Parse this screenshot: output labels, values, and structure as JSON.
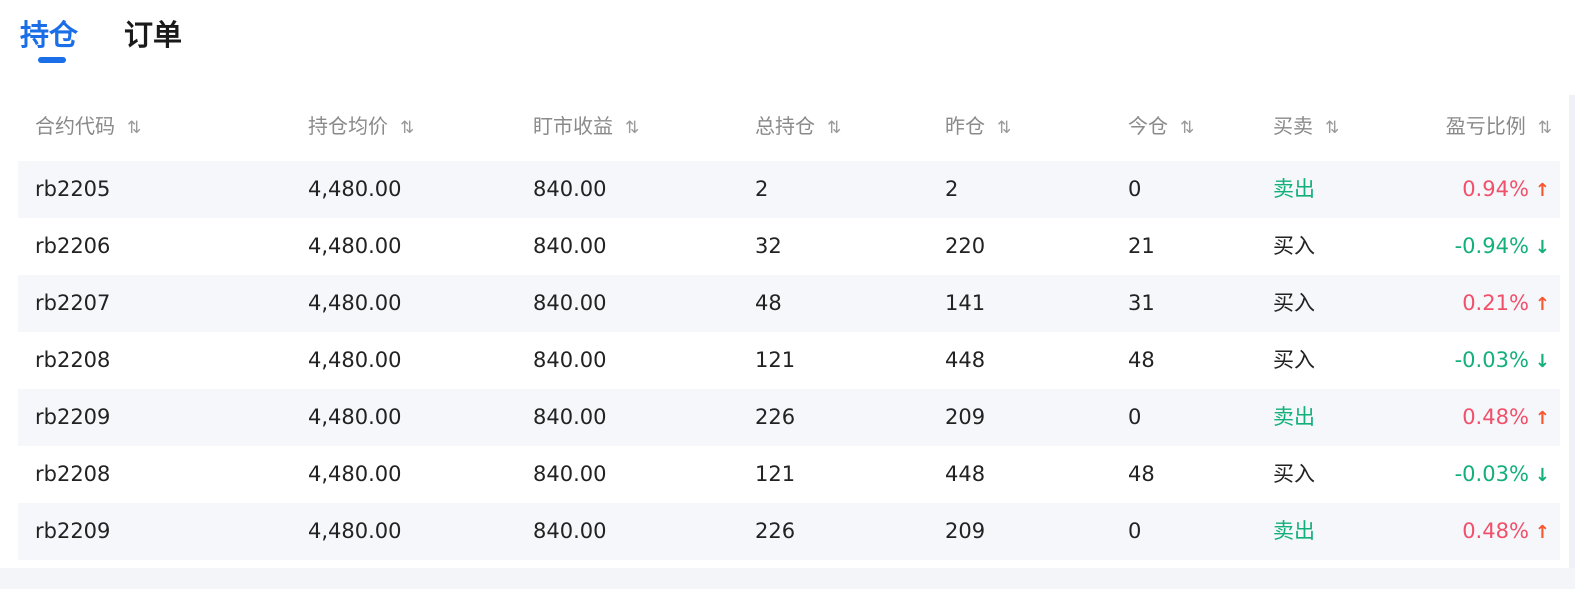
{
  "tabs": [
    {
      "label": "持仓",
      "active": true
    },
    {
      "label": "订单",
      "active": false
    }
  ],
  "colors": {
    "accent": "#1a6fe8",
    "profit": "#f0506a",
    "loss": "#13b07a",
    "sell": "#13b07a"
  },
  "columns": [
    "合约代码",
    "持仓均价",
    "盯市收益",
    "总持仓",
    "昨仓",
    "今仓",
    "买卖",
    "盈亏比例"
  ],
  "sort_icon": "⇅",
  "rows": [
    {
      "code": "rb2205",
      "avg": "4,480.00",
      "pnl": "840.00",
      "total": "2",
      "yest": "2",
      "today": "0",
      "side": "卖出",
      "ratio": "0.94%",
      "dir": "up"
    },
    {
      "code": "rb2206",
      "avg": "4,480.00",
      "pnl": "840.00",
      "total": "32",
      "yest": "220",
      "today": "21",
      "side": "买入",
      "ratio": "-0.94%",
      "dir": "down"
    },
    {
      "code": "rb2207",
      "avg": "4,480.00",
      "pnl": "840.00",
      "total": "48",
      "yest": "141",
      "today": "31",
      "side": "买入",
      "ratio": "0.21%",
      "dir": "up"
    },
    {
      "code": "rb2208",
      "avg": "4,480.00",
      "pnl": "840.00",
      "total": "121",
      "yest": "448",
      "today": "48",
      "side": "买入",
      "ratio": "-0.03%",
      "dir": "down"
    },
    {
      "code": "rb2209",
      "avg": "4,480.00",
      "pnl": "840.00",
      "total": "226",
      "yest": "209",
      "today": "0",
      "side": "卖出",
      "ratio": "0.48%",
      "dir": "up"
    },
    {
      "code": "rb2208",
      "avg": "4,480.00",
      "pnl": "840.00",
      "total": "121",
      "yest": "448",
      "today": "48",
      "side": "买入",
      "ratio": "-0.03%",
      "dir": "down"
    },
    {
      "code": "rb2209",
      "avg": "4,480.00",
      "pnl": "840.00",
      "total": "226",
      "yest": "209",
      "today": "0",
      "side": "卖出",
      "ratio": "0.48%",
      "dir": "up"
    }
  ]
}
